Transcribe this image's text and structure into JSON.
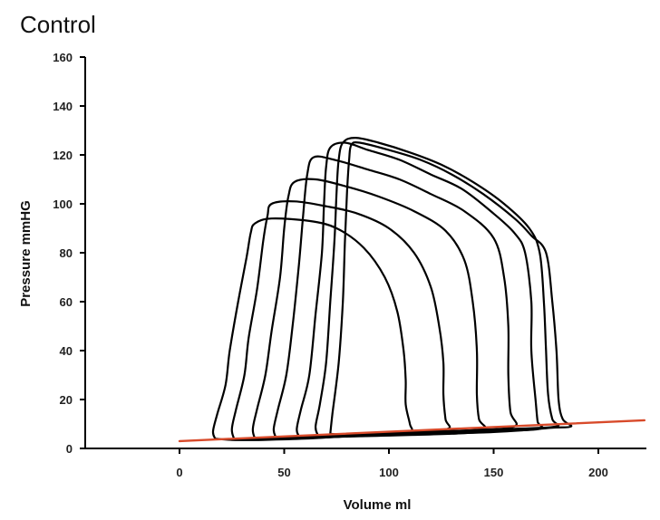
{
  "chart_data": {
    "type": "line",
    "title": "Control",
    "xlabel": "Volume ml",
    "ylabel": "Pressure mmHG",
    "xlim": [
      -45,
      222
    ],
    "ylim": [
      0,
      160
    ],
    "x_ticks": [
      0,
      50,
      100,
      150,
      200
    ],
    "y_ticks": [
      0,
      20,
      40,
      60,
      80,
      100,
      120,
      140,
      160
    ],
    "grid": false,
    "legend": "none",
    "colors": {
      "loops": "#000000",
      "edpvr": "#d84a2a"
    },
    "series": [
      {
        "kind": "pv-loop",
        "points": [
          [
            17,
            4
          ],
          [
            16,
            7
          ],
          [
            18,
            14
          ],
          [
            22,
            26
          ],
          [
            24,
            40
          ],
          [
            28,
            60
          ],
          [
            32,
            78
          ],
          [
            34,
            88
          ],
          [
            36,
            92
          ],
          [
            44,
            94
          ],
          [
            62,
            93
          ],
          [
            75,
            90
          ],
          [
            88,
            82
          ],
          [
            98,
            70
          ],
          [
            104,
            56
          ],
          [
            107,
            40
          ],
          [
            108,
            28
          ],
          [
            108,
            18
          ],
          [
            110,
            10
          ],
          [
            110,
            7
          ],
          [
            96,
            6
          ],
          [
            80,
            5
          ],
          [
            60,
            4
          ],
          [
            40,
            3.5
          ],
          [
            25,
            3.5
          ],
          [
            17,
            4
          ]
        ]
      },
      {
        "kind": "pv-loop",
        "points": [
          [
            26,
            4
          ],
          [
            25,
            8
          ],
          [
            27,
            16
          ],
          [
            31,
            30
          ],
          [
            33,
            45
          ],
          [
            37,
            65
          ],
          [
            40,
            85
          ],
          [
            42,
            95
          ],
          [
            44,
            100
          ],
          [
            55,
            101
          ],
          [
            70,
            99
          ],
          [
            85,
            96
          ],
          [
            100,
            90
          ],
          [
            112,
            80
          ],
          [
            120,
            66
          ],
          [
            124,
            50
          ],
          [
            126,
            35
          ],
          [
            126,
            22
          ],
          [
            127,
            12
          ],
          [
            128,
            8
          ],
          [
            110,
            6.5
          ],
          [
            90,
            5.5
          ],
          [
            70,
            4.5
          ],
          [
            50,
            4
          ],
          [
            35,
            4
          ],
          [
            26,
            4
          ]
        ]
      },
      {
        "kind": "pv-loop",
        "points": [
          [
            36,
            4
          ],
          [
            35,
            8
          ],
          [
            37,
            16
          ],
          [
            41,
            30
          ],
          [
            44,
            48
          ],
          [
            48,
            70
          ],
          [
            50,
            90
          ],
          [
            52,
            103
          ],
          [
            55,
            109
          ],
          [
            65,
            110
          ],
          [
            80,
            107
          ],
          [
            95,
            103
          ],
          [
            112,
            97
          ],
          [
            127,
            89
          ],
          [
            136,
            77
          ],
          [
            140,
            60
          ],
          [
            142,
            40
          ],
          [
            142,
            22
          ],
          [
            143,
            12
          ],
          [
            145,
            8
          ],
          [
            125,
            7
          ],
          [
            105,
            6
          ],
          [
            85,
            5
          ],
          [
            65,
            4.5
          ],
          [
            48,
            4
          ],
          [
            36,
            4
          ]
        ]
      },
      {
        "kind": "pv-loop",
        "points": [
          [
            46,
            4.5
          ],
          [
            45,
            8
          ],
          [
            47,
            16
          ],
          [
            51,
            30
          ],
          [
            54,
            50
          ],
          [
            57,
            75
          ],
          [
            59,
            95
          ],
          [
            61,
            112
          ],
          [
            64,
            119
          ],
          [
            74,
            118
          ],
          [
            90,
            114
          ],
          [
            105,
            110
          ],
          [
            120,
            104
          ],
          [
            136,
            97
          ],
          [
            150,
            86
          ],
          [
            155,
            70
          ],
          [
            157,
            50
          ],
          [
            157,
            30
          ],
          [
            158,
            15
          ],
          [
            160,
            9
          ],
          [
            140,
            7.5
          ],
          [
            120,
            6.5
          ],
          [
            100,
            5.5
          ],
          [
            80,
            5
          ],
          [
            60,
            4.5
          ],
          [
            46,
            4.5
          ]
        ]
      },
      {
        "kind": "pv-loop",
        "points": [
          [
            57,
            5
          ],
          [
            56,
            8
          ],
          [
            58,
            16
          ],
          [
            62,
            30
          ],
          [
            65,
            55
          ],
          [
            68,
            80
          ],
          [
            69,
            100
          ],
          [
            70,
            115
          ],
          [
            72,
            123
          ],
          [
            79,
            125
          ],
          [
            90,
            122
          ],
          [
            105,
            118
          ],
          [
            120,
            112
          ],
          [
            135,
            106
          ],
          [
            150,
            96
          ],
          [
            160,
            88
          ],
          [
            165,
            80
          ],
          [
            168,
            60
          ],
          [
            168,
            40
          ],
          [
            170,
            20
          ],
          [
            171,
            11
          ],
          [
            172,
            8
          ],
          [
            150,
            7
          ],
          [
            130,
            6
          ],
          [
            110,
            5.5
          ],
          [
            85,
            5
          ],
          [
            65,
            5
          ],
          [
            57,
            5
          ]
        ]
      },
      {
        "kind": "pv-loop",
        "points": [
          [
            66,
            5.5
          ],
          [
            65,
            9
          ],
          [
            67,
            18
          ],
          [
            70,
            35
          ],
          [
            72,
            60
          ],
          [
            74,
            85
          ],
          [
            75,
            105
          ],
          [
            76,
            118
          ],
          [
            78,
            125
          ],
          [
            84,
            127
          ],
          [
            95,
            125
          ],
          [
            110,
            121
          ],
          [
            125,
            116
          ],
          [
            140,
            109
          ],
          [
            155,
            100
          ],
          [
            167,
            90
          ],
          [
            172,
            80
          ],
          [
            174,
            60
          ],
          [
            175,
            40
          ],
          [
            176,
            22
          ],
          [
            178,
            12
          ],
          [
            180,
            9
          ],
          [
            160,
            8
          ],
          [
            140,
            7
          ],
          [
            120,
            6.5
          ],
          [
            100,
            6
          ],
          [
            80,
            5.5
          ],
          [
            66,
            5.5
          ]
        ]
      },
      {
        "kind": "pv-loop",
        "points": [
          [
            72,
            6
          ],
          [
            73,
            14
          ],
          [
            76,
            35
          ],
          [
            78,
            60
          ],
          [
            79,
            85
          ],
          [
            80,
            105
          ],
          [
            81,
            118
          ],
          [
            82,
            124
          ],
          [
            86,
            125
          ],
          [
            100,
            122
          ],
          [
            115,
            118
          ],
          [
            130,
            112
          ],
          [
            145,
            104
          ],
          [
            160,
            94
          ],
          [
            168,
            87
          ],
          [
            175,
            80
          ],
          [
            178,
            60
          ],
          [
            180,
            40
          ],
          [
            181,
            20
          ],
          [
            183,
            12
          ],
          [
            187,
            9
          ],
          [
            178,
            8.5
          ],
          [
            165,
            7.5
          ],
          [
            145,
            6.5
          ],
          [
            120,
            6
          ],
          [
            95,
            5.5
          ],
          [
            80,
            5.5
          ],
          [
            72,
            6
          ]
        ]
      }
    ],
    "edpvr_line": {
      "kind": "edpvr",
      "points": [
        [
          0,
          3
        ],
        [
          222,
          11.5
        ]
      ]
    }
  }
}
